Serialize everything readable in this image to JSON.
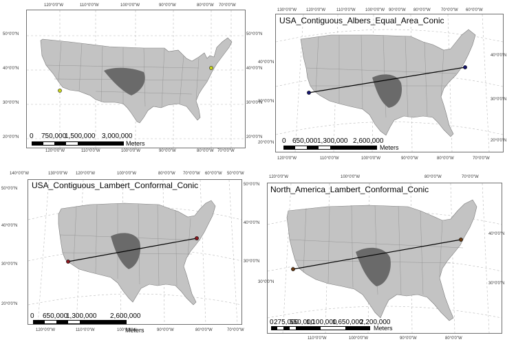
{
  "panels": [
    {
      "title": "",
      "top_ticks": [
        "120°0'0\"W",
        "110°0'0\"W",
        "100°0'0\"W",
        "90°0'0\"W",
        "80°0'0\"W",
        "70°0'0\"W"
      ],
      "bottom_ticks": [
        "120°0'0\"W",
        "110°0'0\"W",
        "100°0'0\"W",
        "90°0'0\"W",
        "80°0'0\"W",
        "70°0'0\"W"
      ],
      "left_ticks": [
        "50°0'0\"N",
        "40°0'0\"N",
        "30°0'0\"N",
        "20°0'0\"N"
      ],
      "right_ticks": [
        "50°0'0\"N",
        "40°0'0\"N",
        "30°0'0\"N",
        "20°0'0\"N"
      ],
      "scalebar_labels": [
        "0",
        "750,000",
        "1,500,000",
        "3,000,000"
      ],
      "scalebar_unit": "Meters",
      "point_color": "#c8d419"
    },
    {
      "title": "USA_Contiguous_Albers_Equal_Area_Conic",
      "top_ticks": [
        "130°0'0\"W",
        "120°0'0\"W",
        "110°0'0\"W",
        "100°0'0\"W",
        "90°0'0\"W",
        "80°0'0\"W",
        "70°0'0\"W",
        "60°0'0\"W"
      ],
      "bottom_ticks": [
        "120°0'0\"W",
        "110°0'0\"W",
        "100°0'0\"W",
        "90°0'0\"W",
        "80°0'0\"W",
        "70°0'0\"W"
      ],
      "left_ticks": [
        "40°0'0\"N",
        "30°0'0\"N",
        "20°0'0\"N"
      ],
      "right_ticks": [
        "40°0'0\"N",
        "30°0'0\"N",
        "20°0'0\"N"
      ],
      "scalebar_labels": [
        "0",
        "650,000",
        "1,300,000",
        "2,600,000"
      ],
      "scalebar_unit": "Meters",
      "point_color": "#14146e"
    },
    {
      "title": "USA_Contiguous_Lambert_Conformal_Conic",
      "top_ticks": [
        "140°0'0\"W",
        "130°0'0\"W",
        "120°0'0\"W",
        "100°0'0\"W",
        "80°0'0\"W",
        "70°0'0\"W",
        "60°0'0\"W",
        "50°0'0\"W"
      ],
      "bottom_ticks": [
        "120°0'0\"W",
        "110°0'0\"W",
        "100°0'0\"W",
        "90°0'0\"W",
        "80°0'0\"W",
        "70°0'0\"W"
      ],
      "left_ticks": [
        "50°0'0\"N",
        "40°0'0\"N",
        "30°0'0\"N",
        "20°0'0\"N"
      ],
      "right_ticks": [
        "50°0'0\"N",
        "40°0'0\"N",
        "30°0'0\"N"
      ],
      "scalebar_labels": [
        "0",
        "650,000",
        "1,300,000",
        "2,600,000"
      ],
      "scalebar_unit": "Meters",
      "point_color": "#8a1820"
    },
    {
      "title": "North_America_Lambert_Conformal_Conic",
      "top_ticks": [
        "120°0'0\"W",
        "100°0'0\"W",
        "80°0'0\"W",
        "70°0'0\"W"
      ],
      "bottom_ticks": [
        "110°0'0\"W",
        "100°0'0\"W",
        "90°0'0\"W",
        "80°0'0\"W"
      ],
      "left_ticks": [
        "30°0'0\"N"
      ],
      "right_ticks": [
        "40°0'0\"N",
        "30°0'0\"N"
      ],
      "scalebar_labels": [
        "0",
        "275,000",
        "550,000",
        "1,100,000",
        "1,650,000",
        "2,200,000"
      ],
      "scalebar_unit": "Meters",
      "point_color": "#6b3a10"
    }
  ]
}
